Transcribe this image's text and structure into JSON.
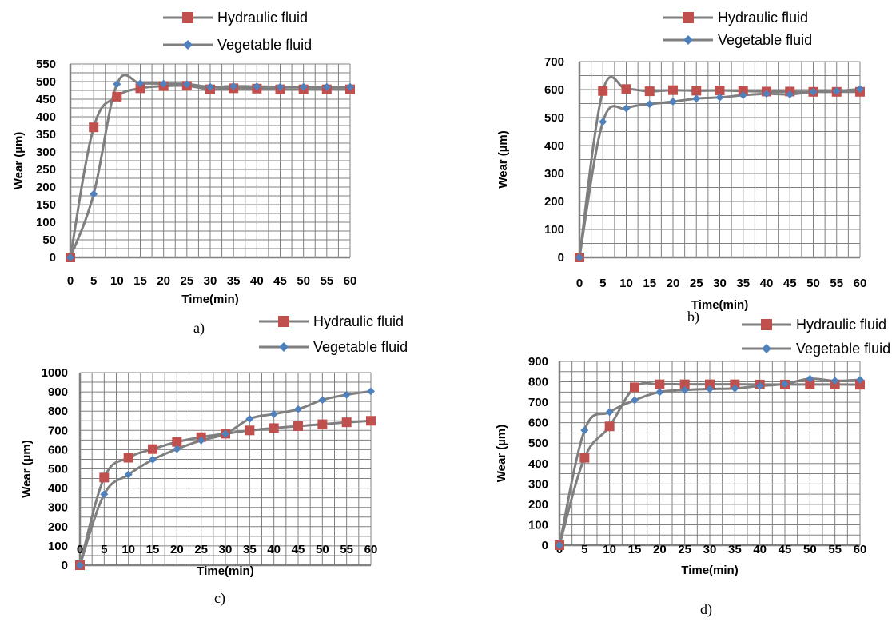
{
  "chart_data": [
    {
      "panel": "a)",
      "type": "line",
      "xlabel": "Time(min)",
      "ylabel": "Wear (µm)",
      "x": [
        0,
        5,
        10,
        15,
        20,
        25,
        30,
        35,
        40,
        45,
        50,
        55,
        60
      ],
      "xlim": [
        0,
        60
      ],
      "ylim": [
        0,
        550
      ],
      "ystep": 50,
      "grid": true,
      "legend": "top",
      "series": [
        {
          "name": "Hydraulic fluid",
          "marker": "square",
          "color": "#c0504d",
          "values": [
            0,
            370,
            457,
            481,
            487,
            488,
            478,
            481,
            480,
            478,
            478,
            478,
            478
          ]
        },
        {
          "name": "Vegetable fluid",
          "marker": "diamond",
          "color": "#4f81bd",
          "values": [
            0,
            180,
            493,
            495,
            494,
            493,
            485,
            487,
            486,
            485,
            485,
            485,
            485
          ]
        }
      ]
    },
    {
      "panel": "b)",
      "type": "line",
      "xlabel": "Time(min)",
      "ylabel": "Wear (µm)",
      "x": [
        0,
        5,
        10,
        15,
        20,
        25,
        30,
        35,
        40,
        45,
        50,
        55,
        60
      ],
      "xlim": [
        0,
        60
      ],
      "ylim": [
        0,
        700
      ],
      "ystep": 100,
      "grid": true,
      "legend": "top",
      "series": [
        {
          "name": "Hydraulic fluid",
          "marker": "square",
          "color": "#c0504d",
          "values": [
            0,
            595,
            602,
            594,
            598,
            596,
            597,
            595,
            593,
            593,
            592,
            592,
            592
          ]
        },
        {
          "name": "Vegetable fluid",
          "marker": "diamond",
          "color": "#4f81bd",
          "values": [
            0,
            485,
            533,
            548,
            557,
            568,
            572,
            580,
            585,
            583,
            592,
            595,
            602
          ]
        }
      ]
    },
    {
      "panel": "c)",
      "type": "line",
      "xlabel": "Time(min)",
      "ylabel": "Wear (µm)",
      "x": [
        0,
        5,
        10,
        15,
        20,
        25,
        30,
        35,
        40,
        45,
        50,
        55,
        60
      ],
      "xlim": [
        0,
        60
      ],
      "ylim": [
        0,
        1000
      ],
      "ystep": 100,
      "grid": true,
      "legend": "top",
      "series": [
        {
          "name": "Hydraulic fluid",
          "marker": "square",
          "color": "#c0504d",
          "values": [
            0,
            455,
            558,
            603,
            640,
            665,
            683,
            700,
            712,
            722,
            732,
            742,
            750
          ]
        },
        {
          "name": "Vegetable fluid",
          "marker": "diamond",
          "color": "#4f81bd",
          "values": [
            0,
            368,
            470,
            548,
            603,
            648,
            682,
            760,
            785,
            810,
            858,
            885,
            903
          ]
        }
      ]
    },
    {
      "panel": "d)",
      "type": "line",
      "xlabel": "Time(min)",
      "ylabel": "Wear (µm)",
      "x": [
        0,
        5,
        10,
        15,
        20,
        25,
        30,
        35,
        40,
        45,
        50,
        55,
        60
      ],
      "xlim": [
        0,
        60
      ],
      "ylim": [
        0,
        900
      ],
      "ystep": 100,
      "grid": true,
      "legend": "top-right",
      "series": [
        {
          "name": "Hydraulic fluid",
          "marker": "square",
          "color": "#c0504d",
          "values": [
            0,
            428,
            582,
            773,
            788,
            788,
            788,
            788,
            787,
            787,
            787,
            787,
            786
          ]
        },
        {
          "name": "Vegetable fluid",
          "marker": "diamond",
          "color": "#4f81bd",
          "values": [
            0,
            563,
            652,
            710,
            750,
            760,
            765,
            768,
            780,
            790,
            815,
            805,
            810
          ]
        }
      ]
    }
  ]
}
